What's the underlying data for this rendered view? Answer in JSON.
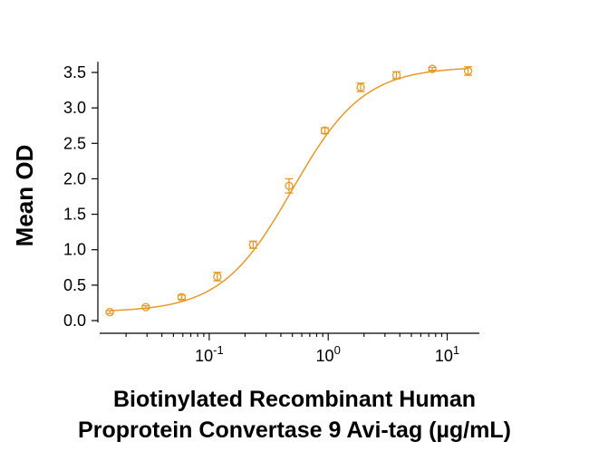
{
  "chart_data": {
    "type": "scatter",
    "title": "",
    "xlabel_line1": "Biotinylated Recombinant Human",
    "xlabel_line2": "Proprotein Convertase 9 Avi-tag (µg/mL)",
    "ylabel": "Mean OD",
    "x_scale": "log",
    "xlim": [
      0.012,
      18
    ],
    "ylim": [
      0.0,
      3.6
    ],
    "x_ticks": [
      {
        "base": "10",
        "exp": "-1",
        "value": 0.1
      },
      {
        "base": "10",
        "exp": "0",
        "value": 1
      },
      {
        "base": "10",
        "exp": "1",
        "value": 10
      }
    ],
    "y_ticks": [
      "0.0",
      "0.5",
      "1.0",
      "1.5",
      "2.0",
      "2.5",
      "3.0",
      "3.5"
    ],
    "y_tick_values": [
      0.0,
      0.5,
      1.0,
      1.5,
      2.0,
      2.5,
      3.0,
      3.5
    ],
    "grid": false,
    "series": [
      {
        "color": "#E69A28",
        "marker": "open-circle",
        "fit": "4PL",
        "x": [
          0.0146,
          0.0293,
          0.0586,
          0.117,
          0.234,
          0.469,
          0.938,
          1.875,
          3.75,
          7.5,
          15
        ],
        "y": [
          0.12,
          0.19,
          0.33,
          0.62,
          1.07,
          1.9,
          2.68,
          3.29,
          3.46,
          3.55,
          3.52
        ],
        "err": [
          0.02,
          0.02,
          0.03,
          0.06,
          0.05,
          0.1,
          0.04,
          0.06,
          0.05,
          0.02,
          0.06
        ]
      }
    ]
  }
}
